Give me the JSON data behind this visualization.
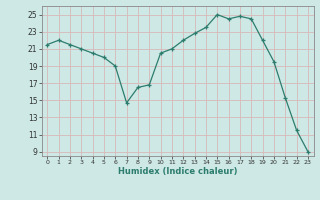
{
  "x": [
    0,
    1,
    2,
    3,
    4,
    5,
    6,
    7,
    8,
    9,
    10,
    11,
    12,
    13,
    14,
    15,
    16,
    17,
    18,
    19,
    20,
    21,
    22,
    23
  ],
  "y": [
    21.5,
    22.0,
    21.5,
    21.0,
    20.5,
    20.0,
    19.0,
    14.7,
    16.5,
    16.8,
    20.5,
    21.0,
    22.0,
    22.8,
    23.5,
    25.0,
    24.5,
    24.8,
    24.5,
    22.0,
    19.5,
    15.3,
    11.5,
    9.0
  ],
  "line_color": "#2d7d6e",
  "marker": "+",
  "bg_color": "#cde8e5",
  "grid_major_color": "#f0c8c8",
  "grid_minor_color": "#cde8e5",
  "xlabel": "Humidex (Indice chaleur)",
  "yticks": [
    9,
    11,
    13,
    15,
    17,
    19,
    21,
    23,
    25
  ],
  "xticks": [
    0,
    1,
    2,
    3,
    4,
    5,
    6,
    7,
    8,
    9,
    10,
    11,
    12,
    13,
    14,
    15,
    16,
    17,
    18,
    19,
    20,
    21,
    22,
    23
  ],
  "xlim": [
    -0.5,
    23.5
  ],
  "ylim": [
    8.5,
    26.0
  ]
}
